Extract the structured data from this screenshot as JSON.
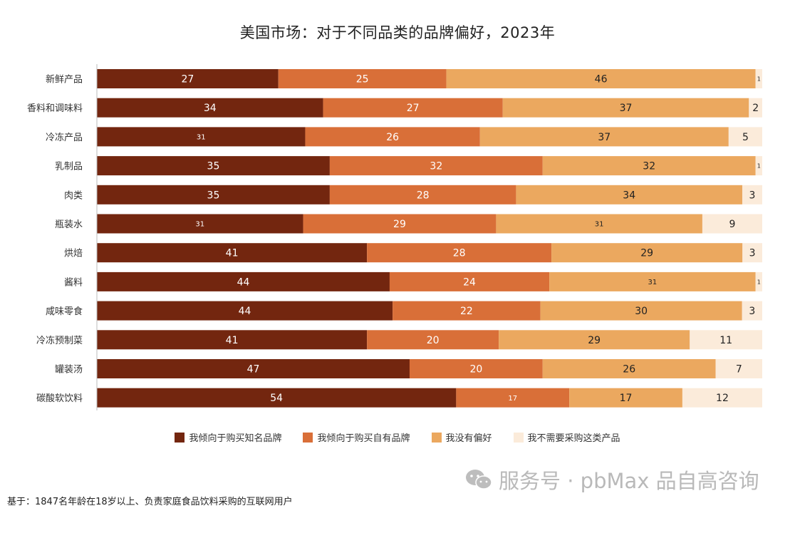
{
  "chart_data": {
    "type": "bar",
    "orientation": "horizontal",
    "stacked": true,
    "title": "美国市场：对于不同品类的品牌偏好，2023年",
    "categories": [
      "新鲜产品",
      "香料和调味料",
      "冷冻产品",
      "乳制品",
      "肉类",
      "瓶装水",
      "烘焙",
      "酱料",
      "咸味零食",
      "冷冻预制菜",
      "罐装汤",
      "碳酸软饮料"
    ],
    "series": [
      {
        "name": "我倾向于购买知名品牌",
        "color": "#73260f",
        "values": [
          27,
          34,
          31,
          35,
          35,
          31,
          41,
          44,
          44,
          41,
          47,
          54
        ]
      },
      {
        "name": "我倾向于购买自有品牌",
        "color": "#d96f38",
        "values": [
          25,
          27,
          26,
          32,
          28,
          29,
          28,
          24,
          22,
          20,
          20,
          17
        ]
      },
      {
        "name": "我没有偏好",
        "color": "#eba85f",
        "values": [
          46,
          37,
          37,
          32,
          34,
          31,
          29,
          31,
          30,
          29,
          26,
          17
        ]
      },
      {
        "name": "我不需要采购这类产品",
        "color": "#fbebda",
        "values": [
          1,
          2,
          5,
          1,
          3,
          9,
          3,
          1,
          3,
          11,
          7,
          12
        ]
      }
    ],
    "legend_position": "bottom",
    "grid": false
  },
  "watermark": "服务号 · pbMax 品自高咨询",
  "footnote": "基于：1847名年龄在18岁以上、负责家庭食品饮料采购的互联网用户"
}
